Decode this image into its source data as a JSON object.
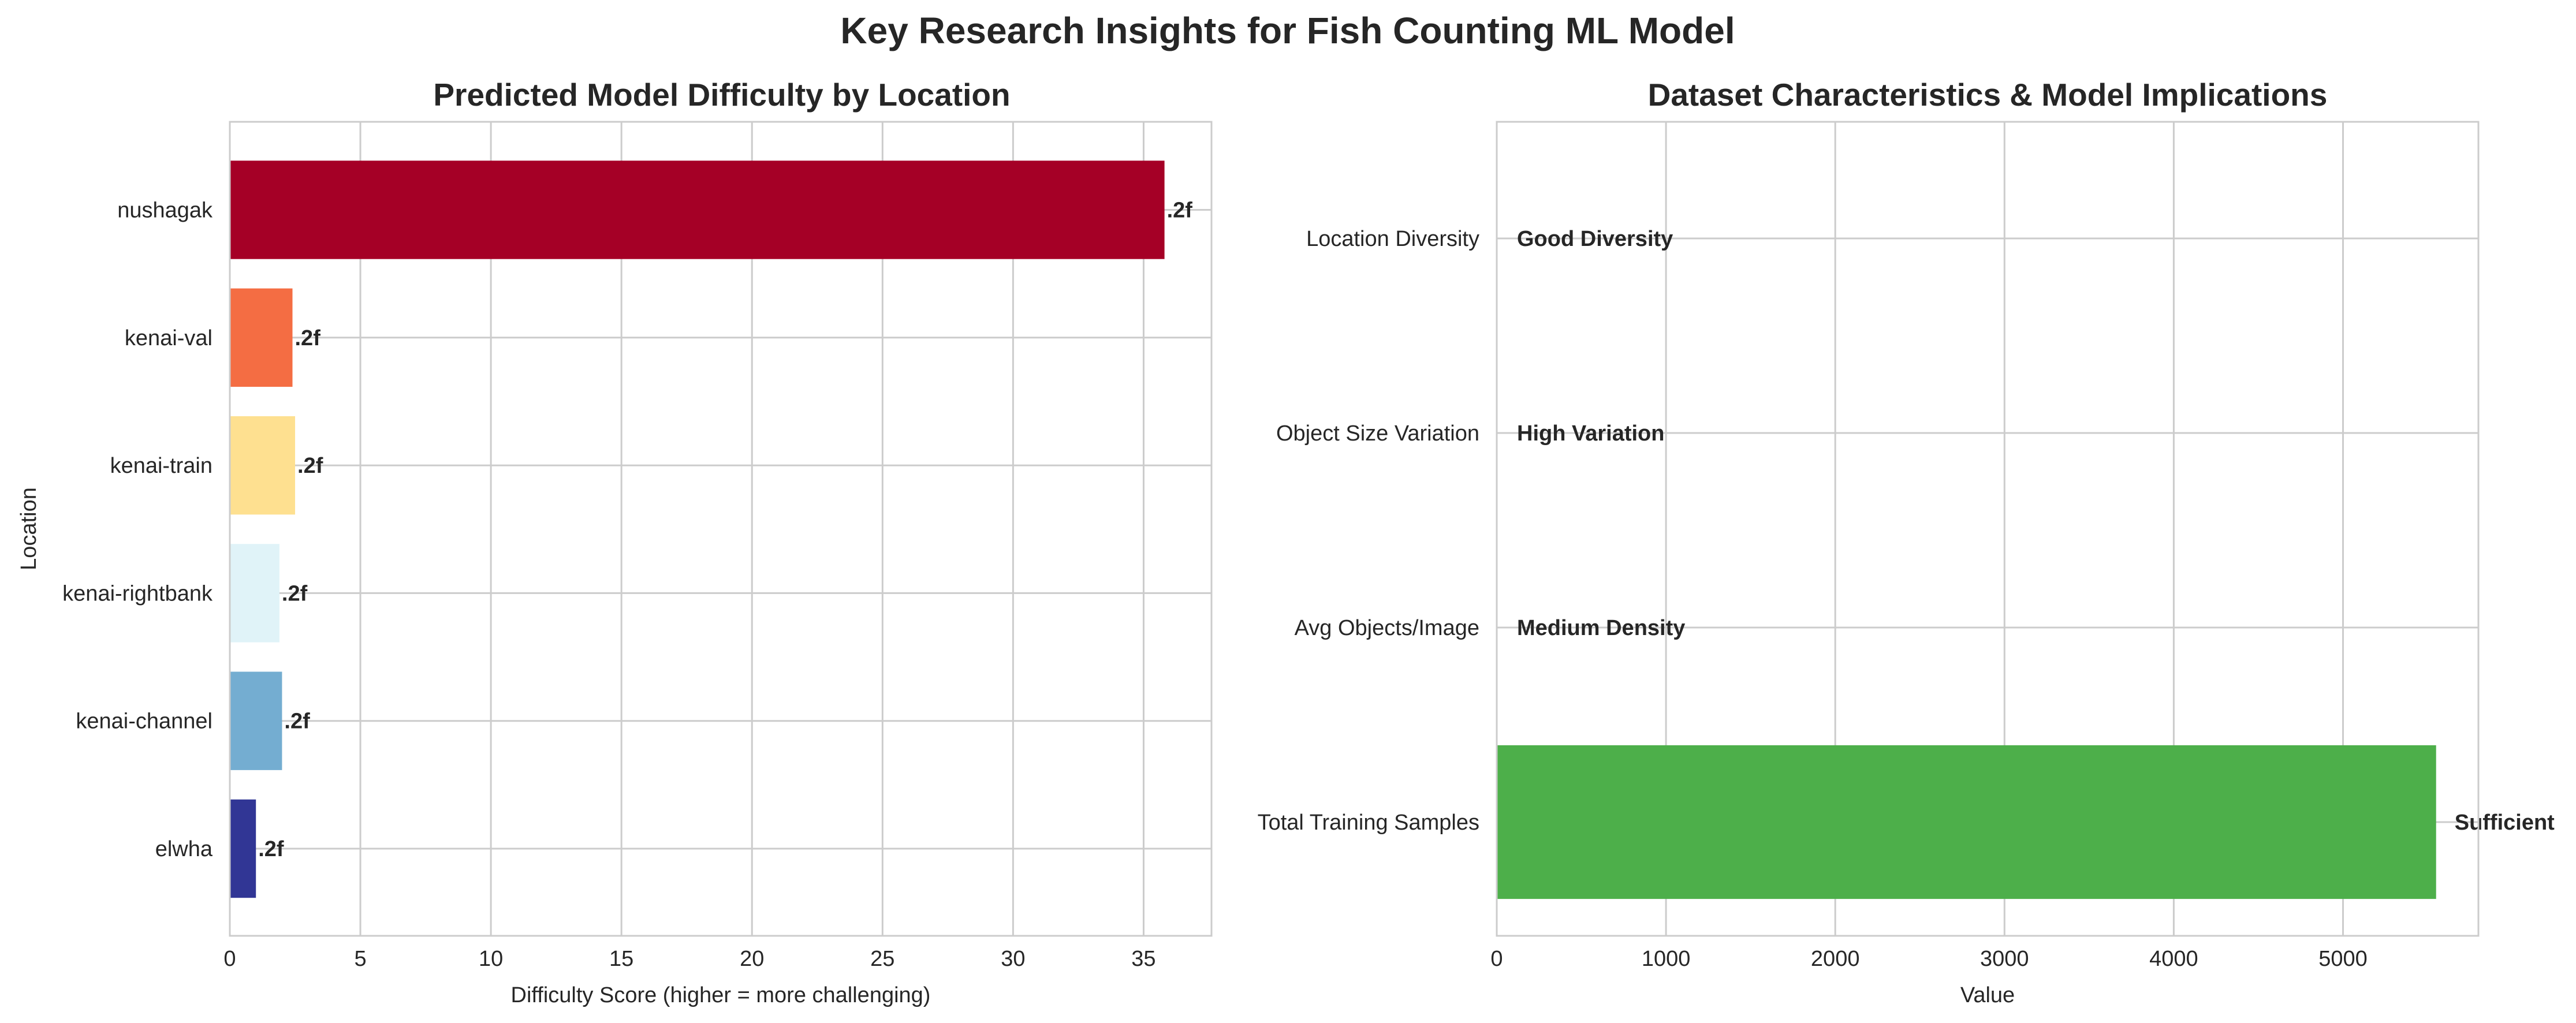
{
  "figure": {
    "suptitle": "Key Research Insights for Fish Counting ML Model"
  },
  "chart_data": [
    {
      "type": "bar",
      "orientation": "horizontal",
      "title": "Predicted Model Difficulty by Location",
      "xlabel": "Difficulty Score (higher = more challenging)",
      "ylabel": "Location",
      "xlim": [
        0,
        37.6
      ],
      "xticks": [
        0,
        5,
        10,
        15,
        20,
        25,
        30,
        35
      ],
      "grid": true,
      "categories": [
        "elwha",
        "kenai-channel",
        "kenai-rightbank",
        "kenai-train",
        "kenai-val",
        "nushagak"
      ],
      "values": [
        1.0,
        2.0,
        1.9,
        2.5,
        2.4,
        35.8
      ],
      "colors": [
        "#313695",
        "#74add1",
        "#e0f3f8",
        "#fee090",
        "#f46d43",
        "#a50026"
      ],
      "data_labels": [
        ".2f",
        ".2f",
        ".2f",
        ".2f",
        ".2f",
        ".2f"
      ]
    },
    {
      "type": "bar",
      "orientation": "horizontal",
      "title": "Dataset Characteristics & Model Implications",
      "xlabel": "Value",
      "ylabel": "",
      "xlim": [
        0,
        5800
      ],
      "xticks": [
        0,
        1000,
        2000,
        3000,
        4000,
        5000
      ],
      "grid": true,
      "categories": [
        "Total Training Samples",
        "Avg Objects/Image",
        "Object Size Variation",
        "Location Diversity"
      ],
      "values": [
        5550,
        0,
        0,
        0
      ],
      "colors": [
        "#4daf4a",
        "#4daf4a",
        "#4daf4a",
        "#4daf4a"
      ],
      "data_labels": [
        "Sufficient",
        "Medium Density",
        "High Variation",
        "Good Diversity"
      ]
    }
  ]
}
